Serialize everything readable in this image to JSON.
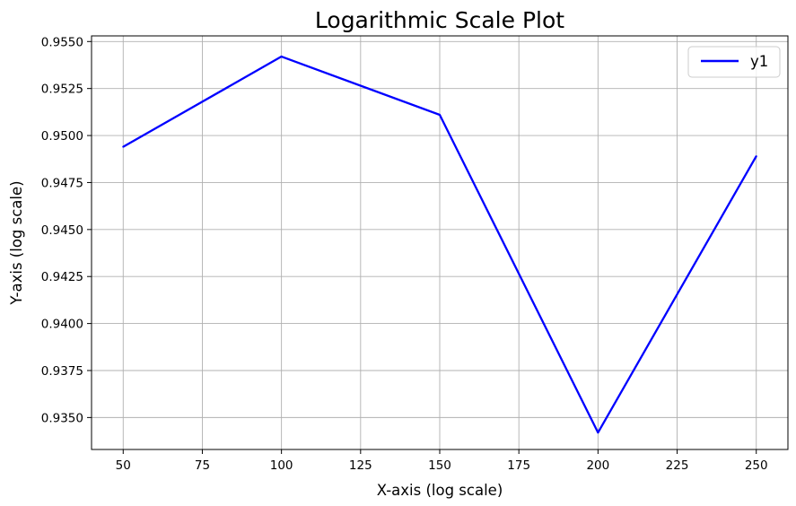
{
  "chart_data": {
    "type": "line",
    "title": "Logarithmic Scale Plot",
    "xlabel": "X-axis (log scale)",
    "ylabel": "Y-axis (log scale)",
    "x": [
      50,
      100,
      150,
      200,
      250
    ],
    "series": [
      {
        "name": "y1",
        "color": "#0000ff",
        "values": [
          0.9494,
          0.9542,
          0.9511,
          0.9342,
          0.9489
        ]
      }
    ],
    "xlim": [
      40,
      260
    ],
    "ylim": [
      0.9333,
      0.9553
    ],
    "xticks": [
      50,
      75,
      100,
      125,
      150,
      175,
      200,
      225,
      250
    ],
    "xtick_labels": [
      "50",
      "75",
      "100",
      "125",
      "150",
      "175",
      "200",
      "225",
      "250"
    ],
    "yticks": [
      0.935,
      0.9375,
      0.94,
      0.9425,
      0.945,
      0.9475,
      0.95,
      0.9525,
      0.955
    ],
    "ytick_labels": [
      "0.9350",
      "0.9375",
      "0.9400",
      "0.9425",
      "0.9450",
      "0.9475",
      "0.9500",
      "0.9525",
      "0.9550"
    ],
    "grid": true,
    "legend_position": "top-right",
    "grid_color": "#b0b0b0"
  }
}
